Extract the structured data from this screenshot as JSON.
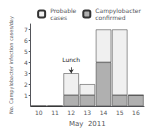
{
  "chart_data": {
    "type": "bar",
    "xlabel": "May  2011",
    "ylabel": "No. Campylobacter infection cases/day",
    "categories": [
      10,
      11,
      12,
      13,
      14,
      15,
      16
    ],
    "series": [
      {
        "name": "Campylobacter\nconfirmed",
        "color": "#b0b0b0",
        "values": [
          0,
          0,
          1,
          1,
          4,
          1,
          1
        ]
      },
      {
        "name": "Probable\ncases",
        "color": "#f0f0f0",
        "values": [
          0,
          0,
          2,
          1,
          3,
          6,
          0
        ]
      }
    ],
    "stacked": true,
    "ylim": [
      0,
      7.5
    ],
    "yticks": [
      1,
      2,
      3,
      4,
      5,
      6,
      7
    ],
    "grid": false,
    "legend": "upper right",
    "annotations": [
      {
        "text": "Lunch",
        "x": 12,
        "y": 3.0,
        "text_y": 3.55
      }
    ]
  }
}
